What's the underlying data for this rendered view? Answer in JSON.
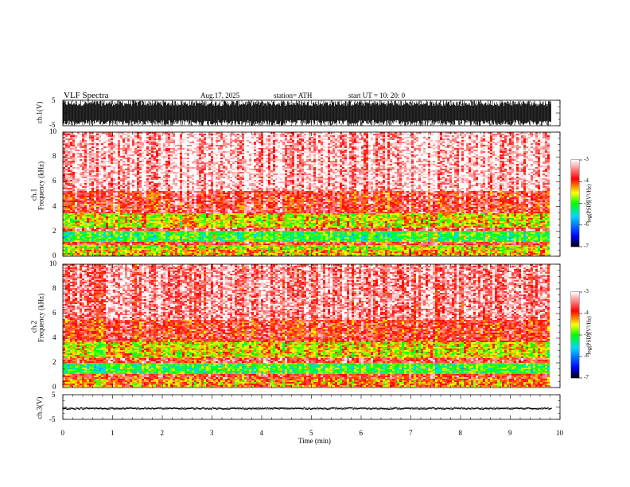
{
  "header": {
    "title": "VLF  Spectra",
    "date": "Aug.17, 2025",
    "station": "station= ATH",
    "start": "start  UT  =    10: 20: 0"
  },
  "chart_data": [
    {
      "type": "line",
      "name": "ch1-waveform",
      "ylabel": "ch.1(V)",
      "ylim": [
        -5,
        5
      ],
      "yticks": [
        "5",
        "-5"
      ],
      "xlim": [
        0,
        10
      ],
      "data_end_min": 9.83,
      "description_amplitude_V": [
        -5,
        5
      ]
    },
    {
      "type": "heatmap",
      "name": "ch1-spectrogram",
      "ylabel_top": "ch.1",
      "ylabel": "Frequency (kHz)",
      "ylim": [
        0,
        10
      ],
      "yticks": [
        "0",
        "2",
        "4",
        "6",
        "8",
        "10"
      ],
      "xlim": [
        0,
        10
      ],
      "data_end_min": 9.83,
      "bands_kHz": [
        {
          "from": 0,
          "to": 0.5,
          "level": -4.3
        },
        {
          "from": 0.5,
          "to": 0.9,
          "level": -4.6
        },
        {
          "from": 0.9,
          "to": 1.2,
          "level": -3.8
        },
        {
          "from": 1.2,
          "to": 2.0,
          "level": -5.0
        },
        {
          "from": 2.0,
          "to": 2.3,
          "level": -3.6
        },
        {
          "from": 2.3,
          "to": 3.5,
          "level": -4.5
        },
        {
          "from": 3.5,
          "to": 5.2,
          "level": -3.7
        },
        {
          "from": 5.2,
          "to": 10,
          "level": -3.2
        }
      ],
      "colorbar": {
        "label": "log(PSD)(V²/Hz)",
        "ticks": [
          "-3",
          "-4",
          "-5",
          "-6",
          "-7"
        ],
        "range": [
          -7,
          -3
        ]
      }
    },
    {
      "type": "heatmap",
      "name": "ch2-spectrogram",
      "ylabel_top": "ch.2",
      "ylabel": "Frequency (kHz)",
      "ylim": [
        0,
        10
      ],
      "yticks": [
        "0",
        "2",
        "4",
        "6",
        "8",
        "10"
      ],
      "xlim": [
        0,
        10
      ],
      "data_end_min": 9.83,
      "bands_kHz": [
        {
          "from": 0,
          "to": 0.6,
          "level": -4.2
        },
        {
          "from": 0.6,
          "to": 1.1,
          "level": -3.8
        },
        {
          "from": 1.1,
          "to": 1.9,
          "level": -5.0
        },
        {
          "from": 1.9,
          "to": 2.4,
          "level": -3.7
        },
        {
          "from": 2.4,
          "to": 3.6,
          "level": -4.5
        },
        {
          "from": 3.6,
          "to": 5.5,
          "level": -3.8
        },
        {
          "from": 5.5,
          "to": 10,
          "level": -3.4
        }
      ],
      "colorbar": {
        "label": "log(PSD)(V²/Hz)",
        "ticks": [
          "-3",
          "-4",
          "-5",
          "-6",
          "-7"
        ],
        "range": [
          -7,
          -3
        ]
      }
    },
    {
      "type": "line",
      "name": "ch3-waveform",
      "ylabel": "ch.3(V)",
      "ylim": [
        -5,
        5
      ],
      "yticks": [
        "5",
        "-5"
      ],
      "xlim": [
        0,
        10
      ],
      "xlabel": "Time  (min)",
      "xticks": [
        "0",
        "1",
        "2",
        "3",
        "4",
        "5",
        "6",
        "7",
        "8",
        "9",
        "10"
      ],
      "data_end_min": 9.83,
      "constant_level_V": -0.6
    }
  ],
  "colors": {
    "axis": "#000000",
    "colormap": [
      "#000000",
      "#0000ff",
      "#00d8ff",
      "#00ff00",
      "#ffff00",
      "#ff0000",
      "#ffffff"
    ]
  }
}
